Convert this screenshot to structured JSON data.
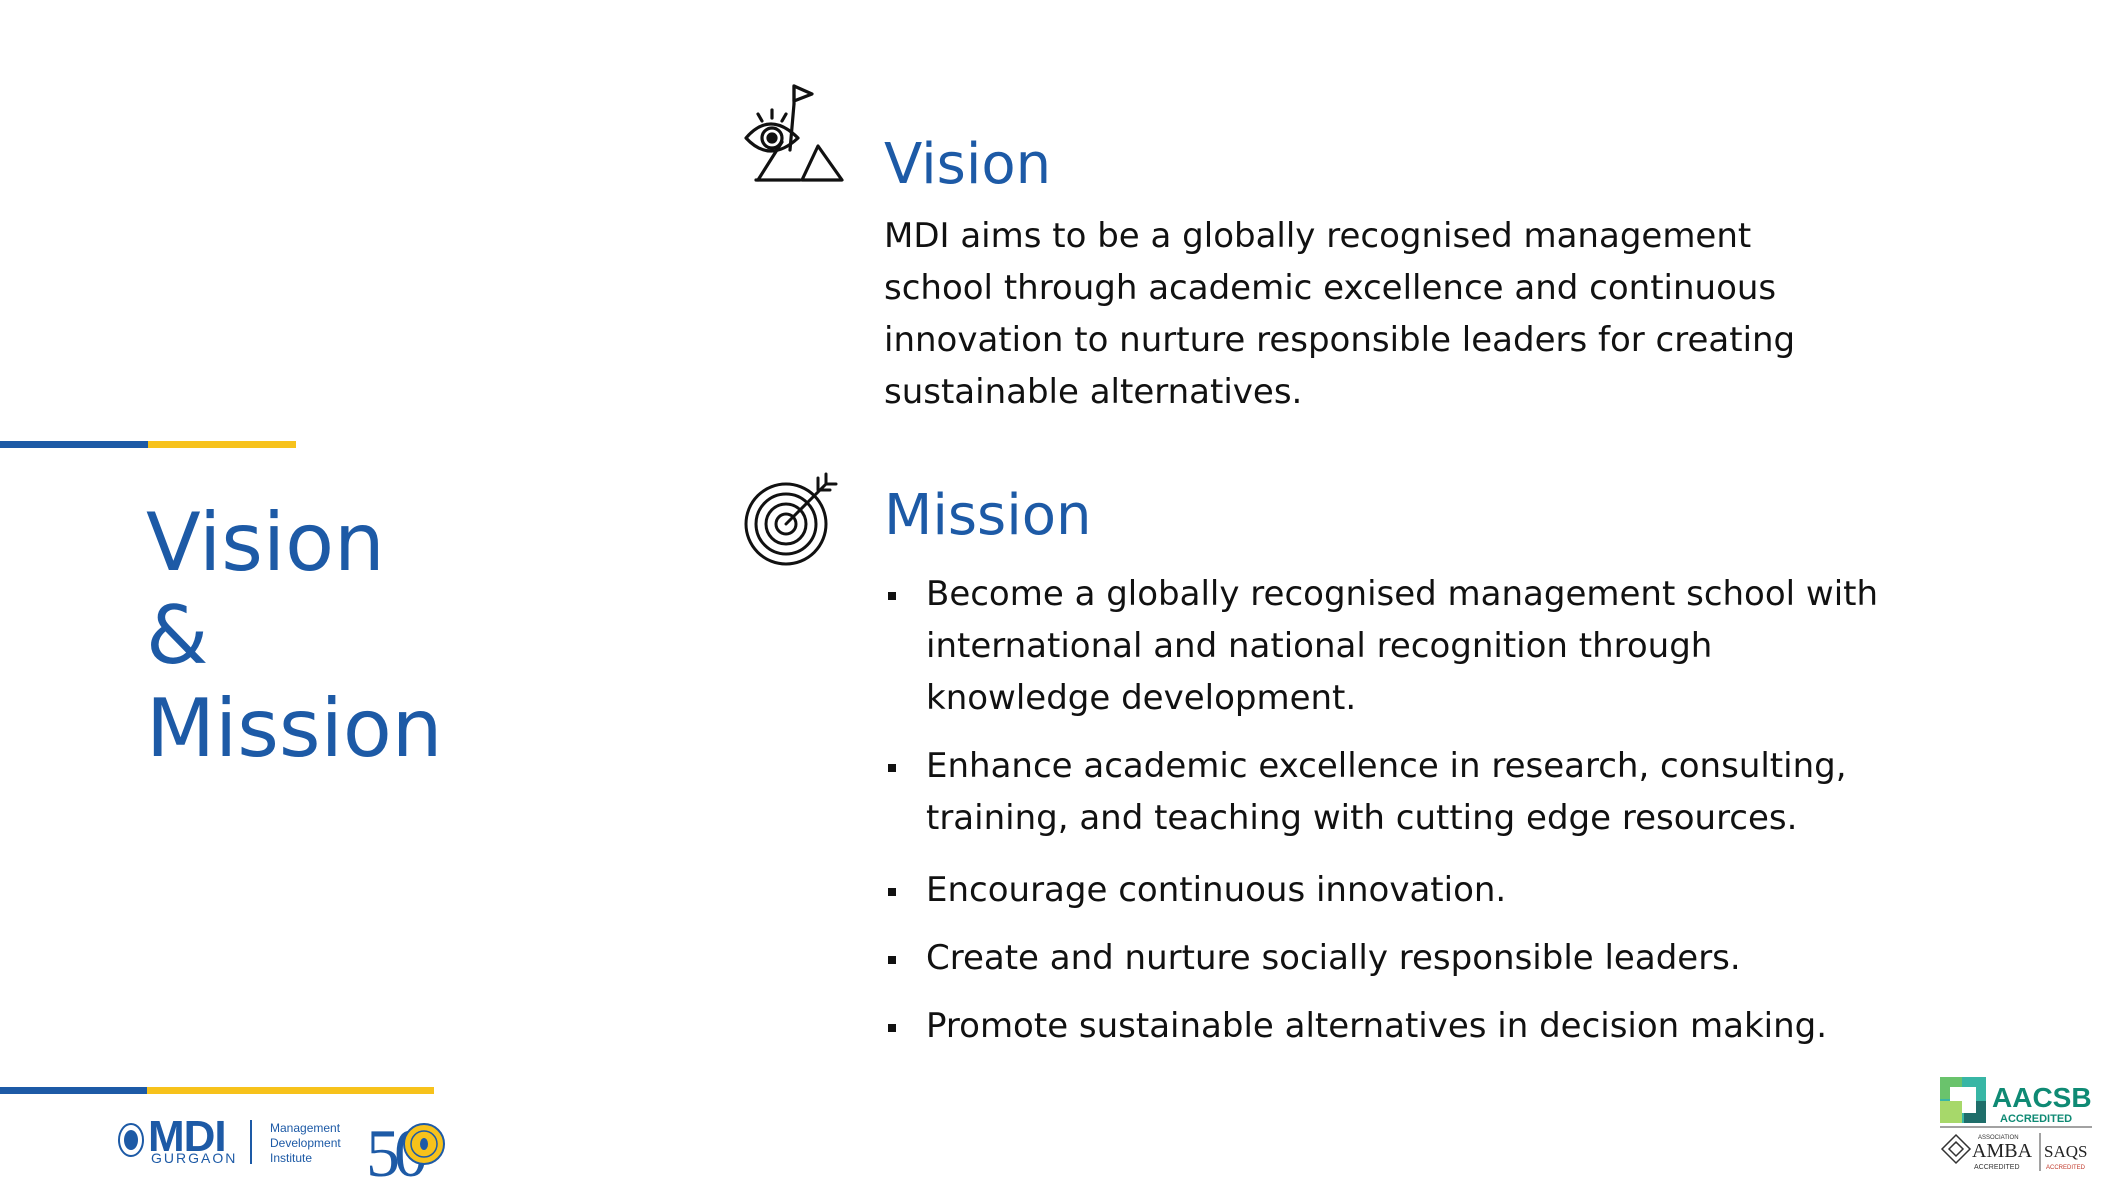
{
  "title": {
    "line1": "Vision",
    "line2": "&",
    "line3": "Mission"
  },
  "vision": {
    "heading": "Vision",
    "icon": "eye-mountain-flag-icon",
    "text": "MDI aims to be a globally recognised management school through academic excellence and continuous innovation to nurture responsible leaders for creating sustainable alternatives."
  },
  "mission": {
    "heading": "Mission",
    "icon": "target-arrow-icon",
    "items": [
      "Become a globally recognised management school with international and national recognition through knowledge development.",
      "Enhance academic excellence in research, consulting, training, and teaching with cutting edge resources.",
      "Encourage continuous innovation.",
      "Create and nurture socially responsible leaders.",
      "Promote sustainable alternatives in decision making."
    ]
  },
  "footer": {
    "logo": {
      "wordmark": "MDI",
      "city": "GURGAON",
      "name_line1": "Management",
      "name_line2": "Development",
      "name_line3": "Institute",
      "anniversary": "50"
    },
    "accreditation": {
      "aacsb": "AACSB",
      "aacsb_sub": "ACCREDITED",
      "amba_prefix": "ASSOCIATION",
      "amba": "AMBA",
      "amba_sub": "ACCREDITED",
      "saqs": "SAQS",
      "saqs_sub": "ACCREDITED"
    }
  },
  "colors": {
    "brand_blue": "#1d5aa6",
    "brand_gold": "#f7c21b",
    "text": "#111111"
  }
}
